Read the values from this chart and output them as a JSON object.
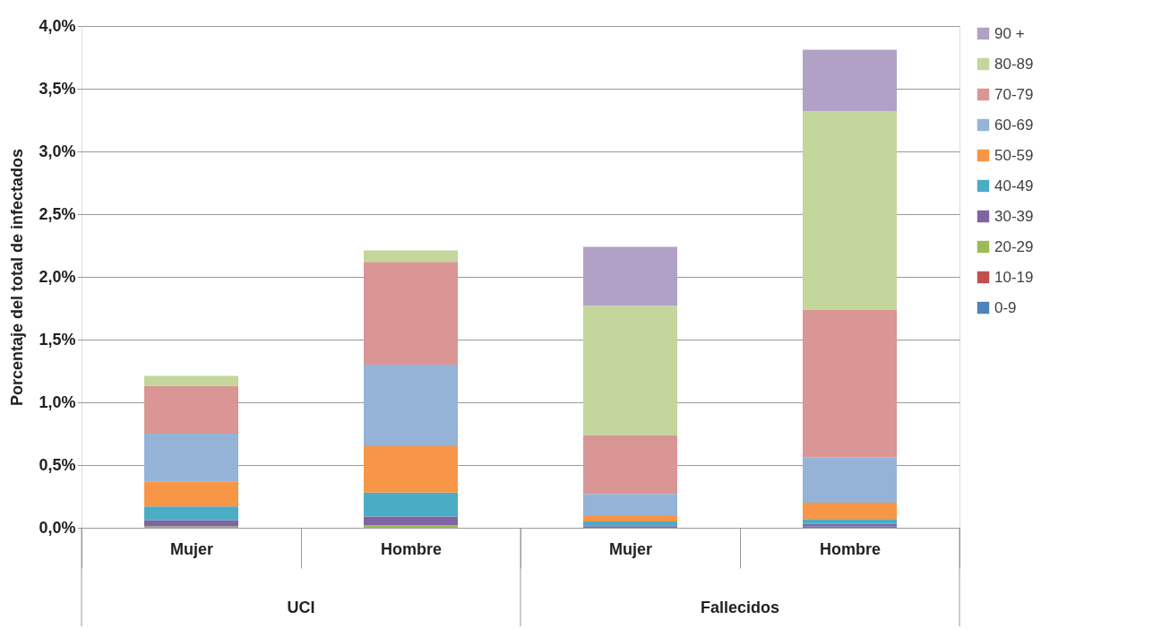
{
  "chart_data": {
    "type": "bar",
    "stacked": true,
    "ylabel": "Porcentaje del total de infectados",
    "categories": [
      "Mujer",
      "Hombre",
      "Mujer",
      "Hombre"
    ],
    "annotations": [
      "UCI",
      "Fallecidos"
    ],
    "series": [
      {
        "name": "0-9",
        "color": "#4f81bd",
        "values": [
          0,
          0,
          0.01,
          0.01
        ]
      },
      {
        "name": "10-19",
        "color": "#c0504d",
        "values": [
          0,
          0,
          0,
          0
        ]
      },
      {
        "name": "20-29",
        "color": "#9bbb59",
        "values": [
          0.01,
          0.02,
          0,
          0
        ]
      },
      {
        "name": "30-39",
        "color": "#8064a2",
        "values": [
          0.05,
          0.07,
          0.01,
          0.02
        ]
      },
      {
        "name": "40-49",
        "color": "#4bacc6",
        "values": [
          0.11,
          0.19,
          0.03,
          0.04
        ]
      },
      {
        "name": "50-59",
        "color": "#f79646",
        "values": [
          0.2,
          0.37,
          0.05,
          0.13
        ]
      },
      {
        "name": "60-69",
        "color": "#95b3d7",
        "values": [
          0.38,
          0.65,
          0.17,
          0.36
        ]
      },
      {
        "name": "70-79",
        "color": "#d99694",
        "values": [
          0.38,
          0.82,
          0.47,
          1.18
        ]
      },
      {
        "name": "80-89",
        "color": "#c3d69b",
        "values": [
          0.08,
          0.09,
          1.03,
          1.58
        ]
      },
      {
        "name": "90 +",
        "color": "#b2a1c7",
        "values": [
          0,
          0,
          0.47,
          0.49
        ]
      }
    ],
    "ylim": [
      0,
      4
    ],
    "yticks": [
      {
        "value": 0,
        "label": "0,0%"
      },
      {
        "value": 0.5,
        "label": "0,5%"
      },
      {
        "value": 1,
        "label": "1,0%"
      },
      {
        "value": 1.5,
        "label": "1,5%"
      },
      {
        "value": 2,
        "label": "2,0%"
      },
      {
        "value": 2.5,
        "label": "2,5%"
      },
      {
        "value": 3,
        "label": "3,0%"
      },
      {
        "value": 3.5,
        "label": "3,5%"
      },
      {
        "value": 4,
        "label": "4,0%"
      }
    ],
    "grid": "y",
    "legend": "right"
  }
}
